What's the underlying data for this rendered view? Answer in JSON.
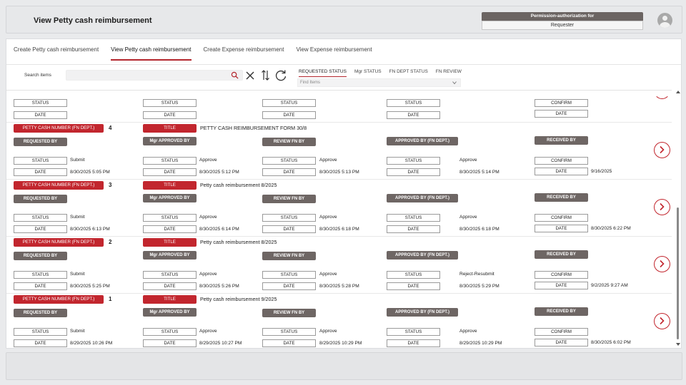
{
  "header": {
    "title": "View Petty cash reimbursement",
    "permission_label": "Permission-authorization for",
    "permission_value": "Requester"
  },
  "tabs": [
    {
      "label": "Create Petty cash reimbursement"
    },
    {
      "label": "View Petty cash reimbursement"
    },
    {
      "label": "Create Expense reimbursement"
    },
    {
      "label": "View Expense reimbursement"
    }
  ],
  "search": {
    "label": "Search items"
  },
  "filters": [
    {
      "label": "REQUESTED STATUS"
    },
    {
      "label": "Mgr STATUS"
    },
    {
      "label": "FN DEPT STATUS"
    },
    {
      "label": "FN REVIEW"
    }
  ],
  "find_items_placeholder": "Find Items",
  "labels": {
    "status": "STATUS",
    "date": "DATE",
    "confirm": "CONFIRM",
    "petty_cash_number": "PETTY CASH NUMBER (FN DEPT.)",
    "title": "TITLE",
    "requested_by": "REQUESTED BY",
    "mgr_approved_by": "Mgr APPROVED BY",
    "review_fn_by": "REVIEW FN BY",
    "approved_by_fn": "APPROVED BY (FN DEPT.)",
    "received_by": "RECEIVED BY"
  },
  "records": [
    {
      "number": "4",
      "title": "PETTY CASH REIMBURSEMENT FORM 30/8",
      "req_status": "Submit",
      "req_date": "8/30/2025 5:05 PM",
      "mgr_status": "Approve",
      "mgr_date": "8/30/2025 5:12 PM",
      "review_status": "Approve",
      "review_date": "8/30/2025 5:13 PM",
      "fn_status": "Approve",
      "fn_date": "8/30/2025 5:14 PM",
      "confirm_date": "9/16/2025"
    },
    {
      "number": "3",
      "title": "Petty cash reimbursement 8/2025",
      "req_status": "Submit",
      "req_date": "8/30/2025 6:13 PM",
      "mgr_status": "Approve",
      "mgr_date": "8/30/2025 6:14 PM",
      "review_status": "Approve",
      "review_date": "8/30/2025 6:18 PM",
      "fn_status": "Approve",
      "fn_date": "8/30/2025 6:18 PM",
      "confirm_date": "8/30/2025 6:22 PM"
    },
    {
      "number": "2",
      "title": "Petty cash reimbursement 8/2025",
      "req_status": "Submit",
      "req_date": "8/30/2025 5:25 PM",
      "mgr_status": "Approve",
      "mgr_date": "8/30/2025 5:26 PM",
      "review_status": "Approve",
      "review_date": "8/30/2025 5:28 PM",
      "fn_status": "Reject-Resubmit",
      "fn_date": "8/30/2025 5:29 PM",
      "confirm_date": "9/2/2025 9:27 AM"
    },
    {
      "number": "1",
      "title": "Petty cash reimbursement 9/2025",
      "req_status": "Submit",
      "req_date": "8/29/2025 10:26 PM",
      "mgr_status": "Approve",
      "mgr_date": "8/29/2025 10:27 PM",
      "review_status": "Approve",
      "review_date": "8/29/2025 10:29 PM",
      "fn_status": "Approve",
      "fn_date": "8/29/2025 10:29 PM",
      "confirm_date": "8/30/2025 6:02 PM"
    }
  ],
  "colors": {
    "accent_red": "#c2262e",
    "label_gray": "#6e6664"
  }
}
